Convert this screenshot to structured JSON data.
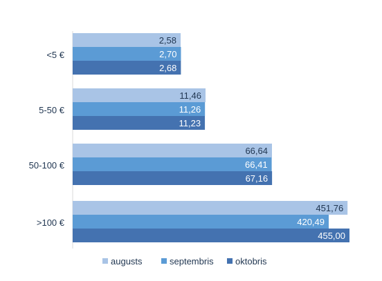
{
  "chart_data": {
    "type": "bar",
    "orientation": "horizontal",
    "categories": [
      "<5 €",
      "5-50  €",
      "50-100  €",
      ">100  €"
    ],
    "series": [
      {
        "name": "augusts",
        "color": "#a9c4e6",
        "values": [
          2.58,
          11.46,
          66.64,
          451.76
        ],
        "labels": [
          "2,58",
          "11,46",
          "66,64",
          "451,76"
        ],
        "label_color": "#1f3550"
      },
      {
        "name": "septembris",
        "color": "#5b9bd5",
        "values": [
          2.7,
          11.26,
          66.41,
          420.49
        ],
        "labels": [
          "2,70",
          "11,26",
          "66,41",
          "420,49"
        ],
        "label_color": "#ffffff"
      },
      {
        "name": "oktobris",
        "color": "#4472b0",
        "values": [
          2.68,
          11.23,
          67.16,
          455.0
        ],
        "labels": [
          "2,68",
          "11,23",
          "67,16",
          "455,00"
        ],
        "label_color": "#ffffff"
      }
    ],
    "scale": "nonlinear",
    "legend": "bottom",
    "grid": false,
    "title": "",
    "xlabel": "",
    "ylabel": ""
  }
}
